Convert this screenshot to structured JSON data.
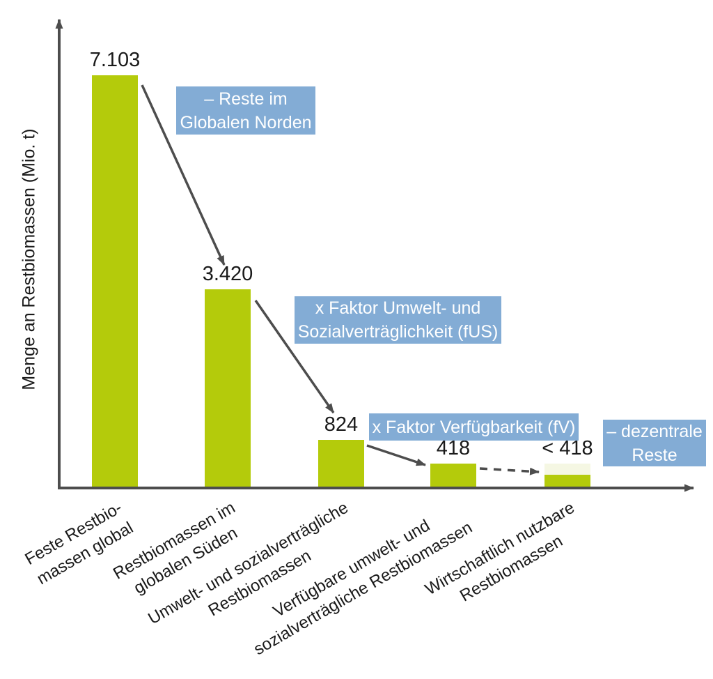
{
  "chart_data": {
    "type": "bar",
    "title": "",
    "xlabel": "",
    "ylabel": "Menge an Restbiomassen (Mio. t)",
    "y_unit": "Mio. t",
    "ylim": [
      0,
      7500
    ],
    "grid": false,
    "legend": "none",
    "bars": [
      {
        "category": "Feste Restbiomassen global",
        "label_line1": "Feste Restbio-",
        "label_line2": "massen global",
        "value": 7103,
        "value_label": "7.103"
      },
      {
        "category": "Restbiomassen im globalen Süden",
        "label_line1": "Restbiomassen im",
        "label_line2": "globalen Süden",
        "value": 3420,
        "value_label": "3.420"
      },
      {
        "category": "Umwelt- und sozialverträgliche Restbiomassen",
        "label_line1": "Umwelt- und sozialverträgliche",
        "label_line2": "Restbiomassen",
        "value": 824,
        "value_label": "824"
      },
      {
        "category": "Verfügbare umwelt- und sozialverträgliche Restbiomassen",
        "label_line1": "Verfügbare umwelt- und",
        "label_line2": "sozialverträgliche Restbiomassen",
        "value": 418,
        "value_label": "418"
      },
      {
        "category": "Wirtschaftlich nutzbare Restbiomassen",
        "label_line1": "Wirtschaftlich nutzbare",
        "label_line2": "Restbiomassen",
        "value": 418,
        "solid_value": 230,
        "value_label": "< 418",
        "uncertain": true
      }
    ],
    "annotations": [
      {
        "line1": "– Reste im",
        "line2": "Globalen Norden",
        "between_bars": [
          1,
          2
        ]
      },
      {
        "line1": "x Faktor Umwelt- und",
        "line2": "Sozialverträglichkeit (fUS)",
        "between_bars": [
          2,
          3
        ]
      },
      {
        "line1": "x Faktor Verfügbarkeit (fV)",
        "between_bars": [
          3,
          4
        ]
      },
      {
        "line1": "– dezentrale",
        "line2": "Reste",
        "between_bars": [
          4,
          5
        ]
      }
    ],
    "arrows": [
      {
        "from_bar": 1,
        "to_bar": 2,
        "style": "solid"
      },
      {
        "from_bar": 2,
        "to_bar": 3,
        "style": "solid"
      },
      {
        "from_bar": 3,
        "to_bar": 4,
        "style": "solid"
      },
      {
        "from_bar": 4,
        "to_bar": 5,
        "style": "dashed"
      }
    ],
    "colors": {
      "bar": "#b4cb0b",
      "bar_light": "#f5f7e3",
      "annotation_bg": "#83acd5",
      "annotation_text": "#ffffff",
      "axis": "#4d4d4d",
      "text": "#1a1a1a"
    }
  }
}
